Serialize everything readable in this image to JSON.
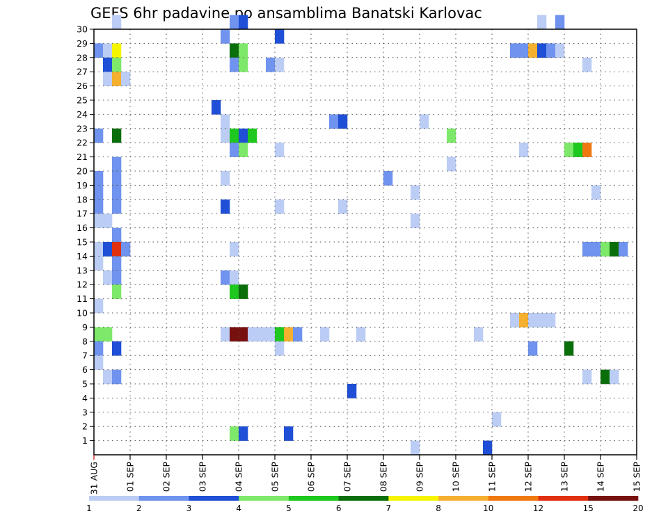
{
  "chart_data": {
    "type": "heatmap",
    "title": "GEFS 6hr padavine po ansamblima Banatski Karlovac",
    "x_tick_labels": [
      "31 AUG",
      "01 SEP",
      "02 SEP",
      "03 SEP",
      "04 SEP",
      "05 SEP",
      "06 SEP",
      "07 SEP",
      "08 SEP",
      "09 SEP",
      "10 SEP",
      "11 SEP",
      "12 SEP",
      "13 SEP",
      "14 SEP",
      "15 SEP"
    ],
    "y_tick_labels": [
      "1",
      "2",
      "3",
      "4",
      "5",
      "6",
      "7",
      "8",
      "9",
      "10",
      "11",
      "12",
      "13",
      "14",
      "15",
      "16",
      "17",
      "18",
      "19",
      "20",
      "21",
      "22",
      "23",
      "24",
      "25",
      "26",
      "27",
      "28",
      "29",
      "30"
    ],
    "x_unit": "6-hour step",
    "xlim": [
      0,
      60
    ],
    "ylim": [
      0,
      30
    ],
    "grid": true,
    "legend_position": "bottom",
    "legend_labels": [
      "1",
      "2",
      "3",
      "4",
      "5",
      "6",
      "7",
      "8",
      "10",
      "12",
      "15",
      "20"
    ],
    "color_classes": [
      "#bccdf5",
      "#6f93ee",
      "#1f4fd6",
      "#7ee86a",
      "#1ec81e",
      "#0a6e0a",
      "#f5f500",
      "#f5b030",
      "#f07810",
      "#e03010",
      "#781010"
    ],
    "cells": [
      [
        30,
        2,
        1
      ],
      [
        30,
        15,
        2
      ],
      [
        30,
        16,
        3
      ],
      [
        30,
        49,
        1
      ],
      [
        30,
        51,
        2
      ],
      [
        29,
        14,
        2
      ],
      [
        29,
        20,
        3
      ],
      [
        28,
        0,
        2
      ],
      [
        28,
        1,
        1
      ],
      [
        28,
        2,
        7
      ],
      [
        28,
        15,
        6
      ],
      [
        28,
        16,
        4
      ],
      [
        28,
        46,
        2
      ],
      [
        28,
        47,
        2
      ],
      [
        28,
        48,
        8
      ],
      [
        28,
        49,
        3
      ],
      [
        28,
        50,
        2
      ],
      [
        28,
        51,
        1
      ],
      [
        27,
        1,
        3
      ],
      [
        27,
        2,
        4
      ],
      [
        27,
        15,
        2
      ],
      [
        27,
        16,
        4
      ],
      [
        27,
        19,
        2
      ],
      [
        27,
        20,
        1
      ],
      [
        27,
        54,
        1
      ],
      [
        26,
        1,
        1
      ],
      [
        26,
        2,
        8
      ],
      [
        26,
        3,
        1
      ],
      [
        24,
        13,
        3
      ],
      [
        23,
        14,
        1
      ],
      [
        23,
        26,
        2
      ],
      [
        23,
        27,
        3
      ],
      [
        23,
        36,
        1
      ],
      [
        22,
        0,
        2
      ],
      [
        22,
        2,
        6
      ],
      [
        22,
        14,
        1
      ],
      [
        22,
        15,
        5
      ],
      [
        22,
        16,
        3
      ],
      [
        22,
        17,
        5
      ],
      [
        22,
        39,
        4
      ],
      [
        21,
        15,
        2
      ],
      [
        21,
        16,
        4
      ],
      [
        21,
        20,
        1
      ],
      [
        21,
        47,
        1
      ],
      [
        21,
        52,
        4
      ],
      [
        21,
        53,
        5
      ],
      [
        21,
        54,
        9
      ],
      [
        20,
        2,
        2
      ],
      [
        20,
        39,
        1
      ],
      [
        19,
        0,
        2
      ],
      [
        19,
        2,
        2
      ],
      [
        19,
        14,
        1
      ],
      [
        19,
        32,
        2
      ],
      [
        18,
        0,
        2
      ],
      [
        18,
        2,
        2
      ],
      [
        18,
        35,
        1
      ],
      [
        18,
        55,
        1
      ],
      [
        17,
        0,
        2
      ],
      [
        17,
        2,
        2
      ],
      [
        17,
        14,
        3
      ],
      [
        17,
        20,
        1
      ],
      [
        17,
        27,
        1
      ],
      [
        16,
        0,
        1
      ],
      [
        16,
        1,
        1
      ],
      [
        16,
        35,
        1
      ],
      [
        15,
        2,
        2
      ],
      [
        14,
        0,
        1
      ],
      [
        14,
        1,
        3
      ],
      [
        14,
        2,
        10
      ],
      [
        14,
        3,
        2
      ],
      [
        14,
        15,
        1
      ],
      [
        14,
        54,
        2
      ],
      [
        14,
        55,
        2
      ],
      [
        14,
        56,
        4
      ],
      [
        14,
        57,
        6
      ],
      [
        14,
        58,
        2
      ],
      [
        13,
        0,
        1
      ],
      [
        13,
        2,
        2
      ],
      [
        12,
        1,
        1
      ],
      [
        12,
        2,
        2
      ],
      [
        12,
        14,
        2
      ],
      [
        12,
        15,
        1
      ],
      [
        11,
        2,
        4
      ],
      [
        11,
        15,
        5
      ],
      [
        11,
        16,
        6
      ],
      [
        10,
        0,
        1
      ],
      [
        9,
        46,
        1
      ],
      [
        9,
        47,
        8
      ],
      [
        9,
        48,
        1
      ],
      [
        9,
        49,
        1
      ],
      [
        9,
        50,
        1
      ],
      [
        8,
        0,
        4
      ],
      [
        8,
        1,
        4
      ],
      [
        8,
        14,
        1
      ],
      [
        8,
        15,
        11
      ],
      [
        8,
        16,
        11
      ],
      [
        8,
        17,
        1
      ],
      [
        8,
        18,
        1
      ],
      [
        8,
        19,
        1
      ],
      [
        8,
        20,
        5
      ],
      [
        8,
        21,
        8
      ],
      [
        8,
        22,
        2
      ],
      [
        8,
        25,
        1
      ],
      [
        8,
        29,
        1
      ],
      [
        8,
        42,
        1
      ],
      [
        7,
        0,
        2
      ],
      [
        7,
        2,
        3
      ],
      [
        7,
        20,
        1
      ],
      [
        7,
        48,
        2
      ],
      [
        7,
        52,
        6
      ],
      [
        6,
        0,
        1
      ],
      [
        5,
        1,
        1
      ],
      [
        5,
        2,
        2
      ],
      [
        5,
        54,
        1
      ],
      [
        5,
        56,
        6
      ],
      [
        5,
        57,
        1
      ],
      [
        4,
        28,
        3
      ],
      [
        2,
        44,
        1
      ],
      [
        1,
        15,
        4
      ],
      [
        1,
        16,
        3
      ],
      [
        1,
        21,
        3
      ],
      [
        0,
        35,
        1
      ],
      [
        0,
        43,
        3
      ]
    ]
  }
}
